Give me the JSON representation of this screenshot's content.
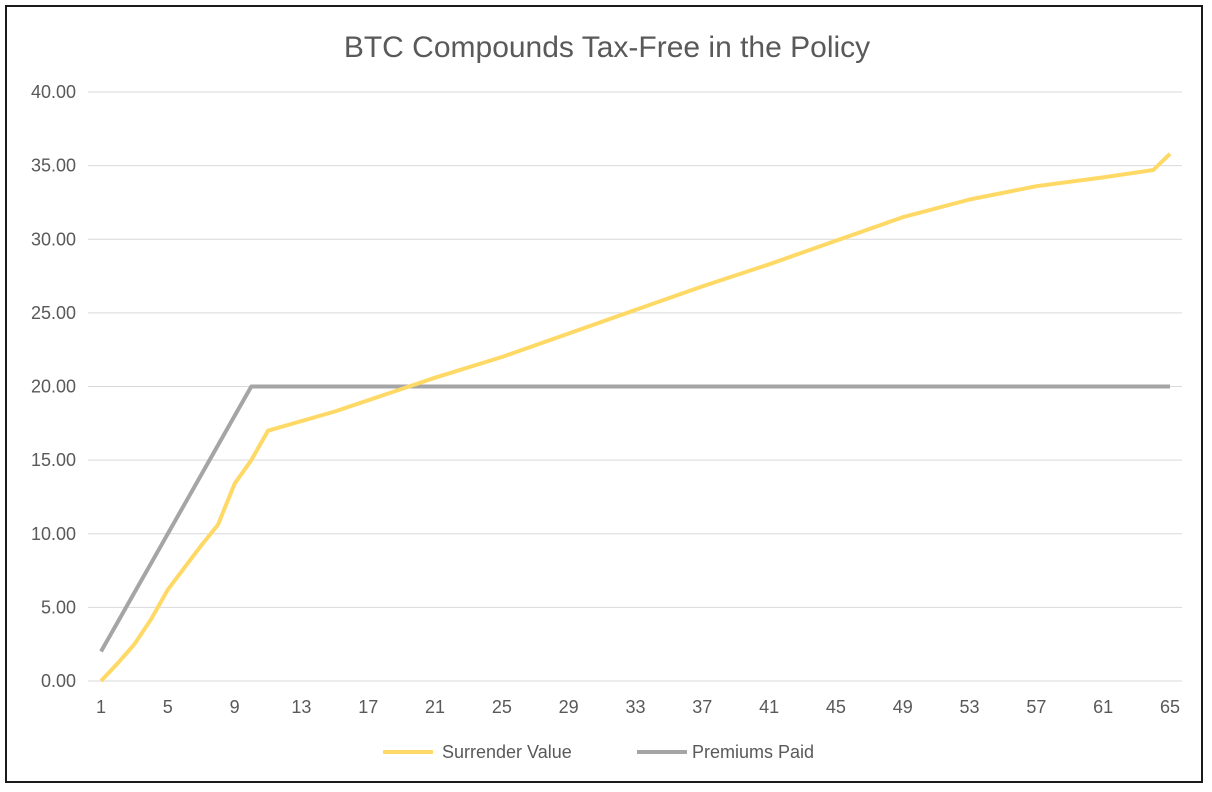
{
  "chart_data": {
    "type": "line",
    "title": "BTC Compounds Tax-Free in the Policy",
    "xlabel": "",
    "ylabel": "",
    "ylim": [
      0,
      40
    ],
    "y_ticks": [
      "0.00",
      "5.00",
      "10.00",
      "15.00",
      "20.00",
      "25.00",
      "30.00",
      "35.00",
      "40.00"
    ],
    "x_range": [
      1,
      65
    ],
    "x_ticks": [
      1,
      5,
      9,
      13,
      17,
      21,
      25,
      29,
      33,
      37,
      41,
      45,
      49,
      53,
      57,
      61,
      65
    ],
    "grid": true,
    "legend_position": "bottom",
    "series": [
      {
        "name": "Surrender Value",
        "color": "#FFD966",
        "x": [
          1,
          2,
          3,
          4,
          5,
          6,
          7,
          8,
          9,
          10,
          11,
          15,
          21,
          25,
          29,
          33,
          37,
          41,
          45,
          49,
          53,
          57,
          61,
          64,
          65
        ],
        "values": [
          0.0,
          1.2,
          2.5,
          4.2,
          6.2,
          7.7,
          9.2,
          10.6,
          13.4,
          15.0,
          17.0,
          18.3,
          20.6,
          22.0,
          23.6,
          25.2,
          26.8,
          28.3,
          29.9,
          31.5,
          32.7,
          33.6,
          34.2,
          34.7,
          35.8
        ]
      },
      {
        "name": "Premiums Paid",
        "color": "#A5A5A5",
        "x": [
          1,
          2,
          3,
          4,
          5,
          6,
          7,
          8,
          9,
          10,
          65
        ],
        "values": [
          2,
          4,
          6,
          8,
          10,
          12,
          14,
          16,
          18,
          20,
          20
        ]
      }
    ]
  }
}
